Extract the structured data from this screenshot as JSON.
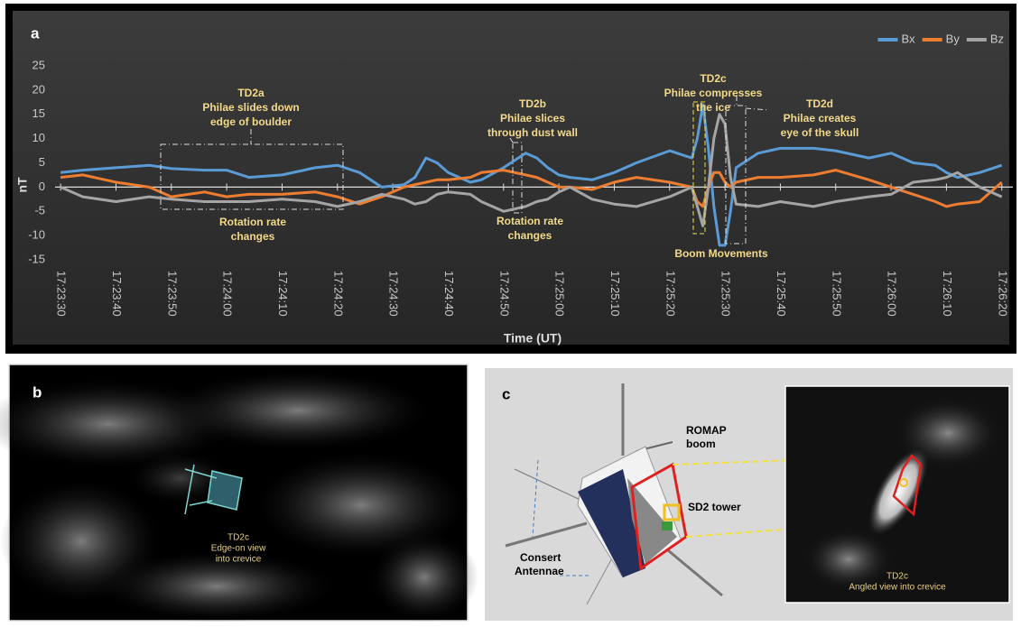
{
  "chart_data": {
    "type": "line",
    "panel_label": "a",
    "y_label": "nT",
    "x_label": "Time (UT)",
    "x": [
      "17:23:30",
      "17:23:34",
      "17:23:40",
      "17:23:46",
      "17:23:50",
      "17:23:56",
      "17:24:00",
      "17:24:04",
      "17:24:10",
      "17:24:16",
      "17:24:20",
      "17:24:24",
      "17:24:28",
      "17:24:32",
      "17:24:34",
      "17:24:36",
      "17:24:38",
      "17:24:40",
      "17:24:44",
      "17:24:46",
      "17:24:50",
      "17:24:54",
      "17:24:56",
      "17:24:58",
      "17:25:00",
      "17:25:02",
      "17:25:06",
      "17:25:10",
      "17:25:14",
      "17:25:20",
      "17:25:24",
      "17:25:25",
      "17:25:26",
      "17:25:27",
      "17:25:28",
      "17:25:29",
      "17:25:30",
      "17:25:31",
      "17:25:32",
      "17:25:36",
      "17:25:40",
      "17:25:46",
      "17:25:50",
      "17:25:56",
      "17:26:00",
      "17:26:04",
      "17:26:08",
      "17:26:10",
      "17:26:12",
      "17:26:16",
      "17:26:20"
    ],
    "series": [
      {
        "name": "Bx",
        "color": "#5b9bd5",
        "values": [
          3,
          3.5,
          4,
          4.5,
          3.8,
          3.5,
          3.5,
          2,
          2.5,
          4,
          4.5,
          3,
          0,
          0.5,
          2,
          6,
          5,
          3,
          1,
          1.5,
          4,
          7,
          6,
          4,
          2.5,
          2,
          1.5,
          3,
          5,
          7.5,
          6,
          10,
          17,
          8,
          -4,
          -12,
          -12,
          -5,
          4,
          7,
          8,
          8,
          7.5,
          6,
          7,
          5,
          4.5,
          3,
          2,
          3,
          4.5
        ]
      },
      {
        "name": "By",
        "color": "#ed7d31",
        "values": [
          2,
          2.5,
          1,
          0,
          -2,
          -1,
          -2,
          -1.5,
          -1.5,
          -1,
          -2,
          -3.5,
          -2,
          0,
          0.5,
          1,
          1.5,
          1.5,
          2,
          3,
          3.5,
          2.5,
          2,
          1,
          0,
          0,
          -0.5,
          1,
          2,
          1,
          0,
          -3,
          -4,
          0,
          3,
          3,
          1,
          0,
          1,
          2,
          2,
          2.5,
          3.5,
          1.5,
          0,
          -1.5,
          -3,
          -4,
          -3.5,
          -3,
          1
        ]
      },
      {
        "name": "Bz",
        "color": "#a5a5a5",
        "values": [
          0,
          -2,
          -3,
          -2,
          -2.5,
          -3,
          -3,
          -3,
          -2.5,
          -3,
          -4,
          -3,
          -1.5,
          -2.5,
          -3.5,
          -3,
          -1.5,
          -1,
          -1.5,
          -3,
          -5,
          -4,
          -3,
          -2.5,
          -1,
          0,
          -2.5,
          -3.5,
          -4,
          -2,
          0,
          -4,
          -8,
          0,
          10,
          15,
          13,
          2,
          -3.5,
          -4,
          -3,
          -4,
          -3,
          -2,
          -1.5,
          1,
          1.5,
          2,
          3,
          0,
          -2
        ]
      }
    ],
    "xlim": [
      "17:23:29",
      "17:26:22"
    ],
    "xticks": [
      "17:23:30",
      "17:23:40",
      "17:23:50",
      "17:24:00",
      "17:24:10",
      "17:24:20",
      "17:24:30",
      "17:24:40",
      "17:24:50",
      "17:25:00",
      "17:25:10",
      "17:25:20",
      "17:25:30",
      "17:25:40",
      "17:25:50",
      "17:26:00",
      "17:26:10",
      "17:26:20"
    ],
    "ylim": [
      -15,
      25
    ],
    "yticks": [
      -15,
      -10,
      -5,
      0,
      5,
      10,
      15,
      20,
      25
    ],
    "grid": false,
    "legend": "top-right",
    "annotations": [
      [
        "TD2a",
        "Philae slides down",
        "edge of boulder"
      ],
      [
        "Rotation rate",
        "changes"
      ],
      [
        "TD2b",
        "Philae slices",
        "through dust wall"
      ],
      [
        "Rotation rate",
        "changes"
      ],
      [
        "TD2c",
        "Philae compresses",
        "the ice"
      ],
      [
        "TD2d",
        "Philae creates",
        "eye of the skull"
      ],
      [
        "Boom Movements"
      ]
    ]
  },
  "panel_b": {
    "label": "b",
    "caption": [
      "TD2c",
      "Edge-on view",
      "into crevice"
    ]
  },
  "panel_c": {
    "label": "c",
    "romap": [
      "ROMAP",
      "boom"
    ],
    "tower": "SD2 tower",
    "consert": [
      "Consert",
      "Antennae"
    ],
    "inset_caption": [
      "TD2c",
      "Angled view into crevice"
    ]
  }
}
